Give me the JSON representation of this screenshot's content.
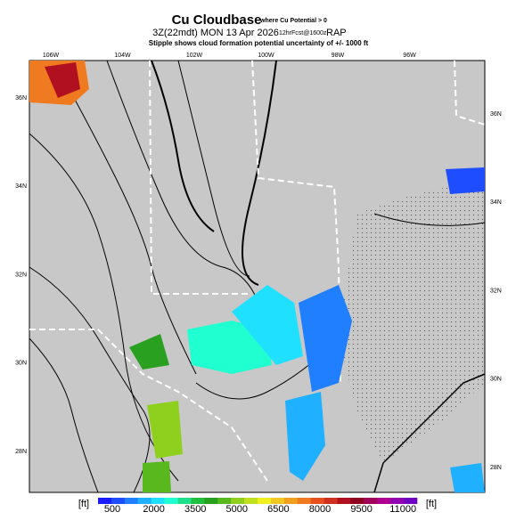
{
  "header": {
    "title": "Cu Cloudbase",
    "title_note": "where Cu Potential > 0",
    "line2_main": "3Z(22mdt) MON 13 Apr 2026",
    "line2_fcst": "12hrFcst@1600z",
    "line2_model": "RAP",
    "line3": "Stipple shows cloud formation potential uncertainty of +/- 1000 ft"
  },
  "map": {
    "lon_labels": [
      "106W",
      "104W",
      "102W",
      "100W",
      "98W",
      "96W"
    ],
    "lat_labels_left": [
      "36N",
      "34N",
      "32N",
      "30N",
      "28N"
    ],
    "lat_labels_right": [
      "36N",
      "34N",
      "32N",
      "30N",
      "28N"
    ]
  },
  "colorbar": {
    "unit_left": "[ft]",
    "unit_right": "[ft]",
    "ticks": [
      500,
      2000,
      3500,
      5000,
      6500,
      8000,
      9500,
      11000
    ],
    "colors": [
      "#1a1aff",
      "#1e4dff",
      "#1f7fff",
      "#1fb0ff",
      "#1fe0ff",
      "#1fffd0",
      "#1fe08a",
      "#1fc040",
      "#2aa020",
      "#5ab81f",
      "#8fd01f",
      "#c0e01f",
      "#f0f01f",
      "#f0c81f",
      "#f0a01f",
      "#f07a1f",
      "#e8501f",
      "#d0301f",
      "#b0101f",
      "#90001f",
      "#a0005a",
      "#b00090",
      "#9000b0",
      "#7000c0"
    ]
  }
}
